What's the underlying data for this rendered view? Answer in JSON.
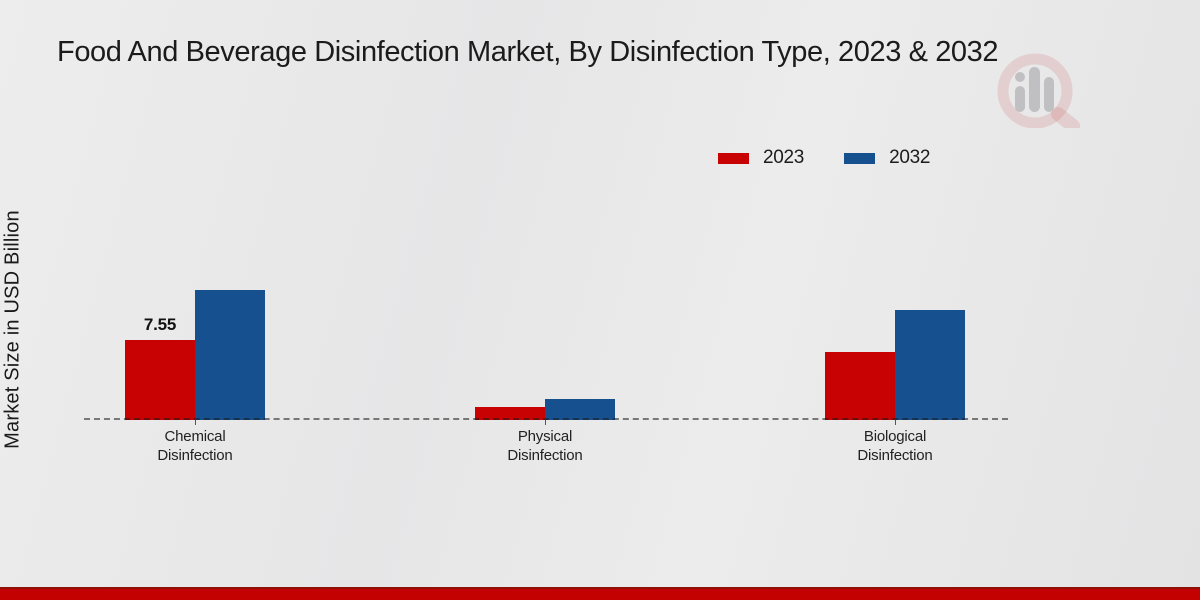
{
  "title": "Food And Beverage Disinfection Market, By Disinfection Type, 2023 & 2032",
  "y_axis_label": "Market Size in USD Billion",
  "legend": [
    {
      "label": "2023",
      "color": "#c80202"
    },
    {
      "label": "2032",
      "color": "#17508f"
    }
  ],
  "chart_data": {
    "type": "bar",
    "title": "Food And Beverage Disinfection Market, By Disinfection Type, 2023 & 2032",
    "ylabel": "Market Size in USD Billion",
    "xlabel": "",
    "categories": [
      "Chemical Disinfection",
      "Physical Disinfection",
      "Biological Disinfection"
    ],
    "series": [
      {
        "name": "2023",
        "color": "#c80202",
        "values": [
          7.55,
          1.2,
          6.4
        ]
      },
      {
        "name": "2032",
        "color": "#17508f",
        "values": [
          12.3,
          2.0,
          10.4
        ]
      }
    ],
    "value_label": {
      "text": "7.55",
      "category_index": 0,
      "series_index": 0
    },
    "grid": "dashed zero-baseline only",
    "legend_position": "top-right",
    "ylim": [
      0,
      13
    ]
  },
  "colors": {
    "series_2023": "#c80202",
    "series_2032": "#17508f",
    "footer_stripe": "#c40101",
    "footer_stripe_edge": "#8f1007",
    "background": "#e8e8e8",
    "baseline_dash": "#4a4a4a"
  },
  "watermark_icon": "magnifier-bar-chart-logo"
}
